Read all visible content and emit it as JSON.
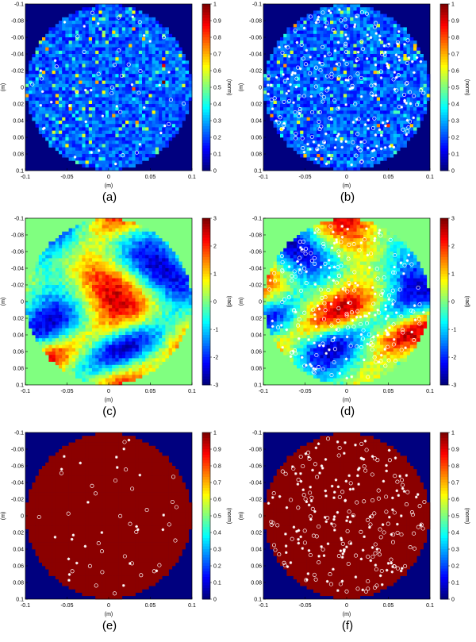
{
  "figure": {
    "panels": [
      {
        "id": "a",
        "caption": "(a)",
        "type": "amplitude",
        "cbar_label": "(norm)",
        "cbar_ticks": [
          "1",
          "0.9",
          "0.8",
          "0.7",
          "0.6",
          "0.5",
          "0.4",
          "0.3",
          "0.2",
          "0.1",
          "0"
        ],
        "markers": "sparse"
      },
      {
        "id": "b",
        "caption": "(b)",
        "type": "amplitude",
        "cbar_label": "(norm)",
        "cbar_ticks": [
          "1",
          "0.9",
          "0.8",
          "0.7",
          "0.6",
          "0.5",
          "0.4",
          "0.3",
          "0.2",
          "0.1",
          "0"
        ],
        "markers": "dense"
      },
      {
        "id": "c",
        "caption": "(c)",
        "type": "phase",
        "cbar_label": "(rad)",
        "cbar_ticks": [
          "3",
          "2",
          "1",
          "0",
          "-1",
          "-2",
          "-3"
        ],
        "markers": "none"
      },
      {
        "id": "d",
        "caption": "(d)",
        "type": "phase",
        "cbar_label": "(rad)",
        "cbar_ticks": [
          "3",
          "2",
          "1",
          "0",
          "-1",
          "-2",
          "-3"
        ],
        "markers": "dense"
      },
      {
        "id": "e",
        "caption": "(e)",
        "type": "mask",
        "cbar_label": "(norm)",
        "cbar_ticks": [
          "1",
          "0.9",
          "0.8",
          "0.7",
          "0.6",
          "0.5",
          "0.4",
          "0.3",
          "0.2",
          "0.1",
          "0"
        ],
        "markers": "sparse"
      },
      {
        "id": "f",
        "caption": "(f)",
        "type": "mask",
        "cbar_label": "(norm)",
        "cbar_ticks": [
          "1",
          "0.9",
          "0.8",
          "0.7",
          "0.6",
          "0.5",
          "0.4",
          "0.3",
          "0.2",
          "0.1",
          "0"
        ],
        "markers": "dense"
      }
    ],
    "x_ticks": [
      "-0.1",
      "-0.05",
      "0",
      "0.05",
      "0.1"
    ],
    "y_ticks": [
      "-0.1",
      "-0.08",
      "-0.06",
      "-0.04",
      "-0.02",
      "0",
      "0.02",
      "0.04",
      "0.06",
      "0.08",
      "0.1"
    ],
    "x_label": "(m)",
    "y_label": "(m)",
    "colors": {
      "outside_amp": "#00007f",
      "outside_phase": "#80ff80",
      "mask_fill": "#8b0000",
      "marker": "#ffffff"
    }
  }
}
